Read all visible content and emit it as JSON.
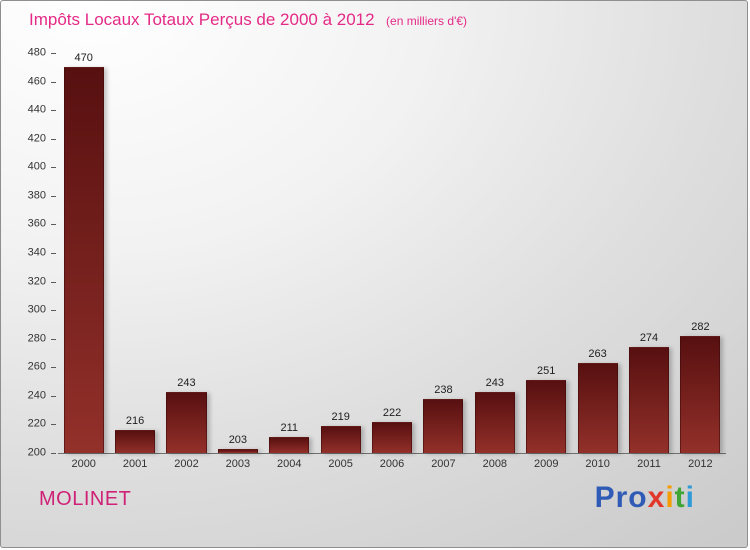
{
  "header": {
    "title": "Impôts Locaux Totaux Perçus de 2000 à 2012",
    "subtitle": "(en milliers d'€)"
  },
  "footer": {
    "location": "MOLINET",
    "logo_letters": [
      {
        "ch": "P",
        "color": "#2f5bb7"
      },
      {
        "ch": "r",
        "color": "#2f5bb7"
      },
      {
        "ch": "o",
        "color": "#2f5bb7"
      },
      {
        "ch": "x",
        "color": "#e2382b"
      },
      {
        "ch": "i",
        "color": "#f59d00"
      },
      {
        "ch": "t",
        "color": "#3fa535"
      },
      {
        "ch": "i",
        "color": "#2f9bd6"
      }
    ]
  },
  "chart_data": {
    "type": "bar",
    "title": "Impôts Locaux Totaux Perçus de 2000 à 2012 (en milliers d'€)",
    "categories": [
      "2000",
      "2001",
      "2002",
      "2003",
      "2004",
      "2005",
      "2006",
      "2007",
      "2008",
      "2009",
      "2010",
      "2011",
      "2012"
    ],
    "values": [
      470,
      216,
      243,
      203,
      211,
      219,
      222,
      238,
      243,
      251,
      263,
      274,
      282
    ],
    "xlabel": "",
    "ylabel": "",
    "ylim": [
      200,
      480
    ],
    "ytick_step": 20,
    "grid": false,
    "legend": false,
    "bar_gradient_top": "#571010",
    "bar_gradient_bottom": "#93302a"
  },
  "colors": {
    "title_pink": "#e42a86",
    "footer_pink": "#cf2277",
    "axis_text": "#333333",
    "value_text": "#1e1e1e"
  }
}
